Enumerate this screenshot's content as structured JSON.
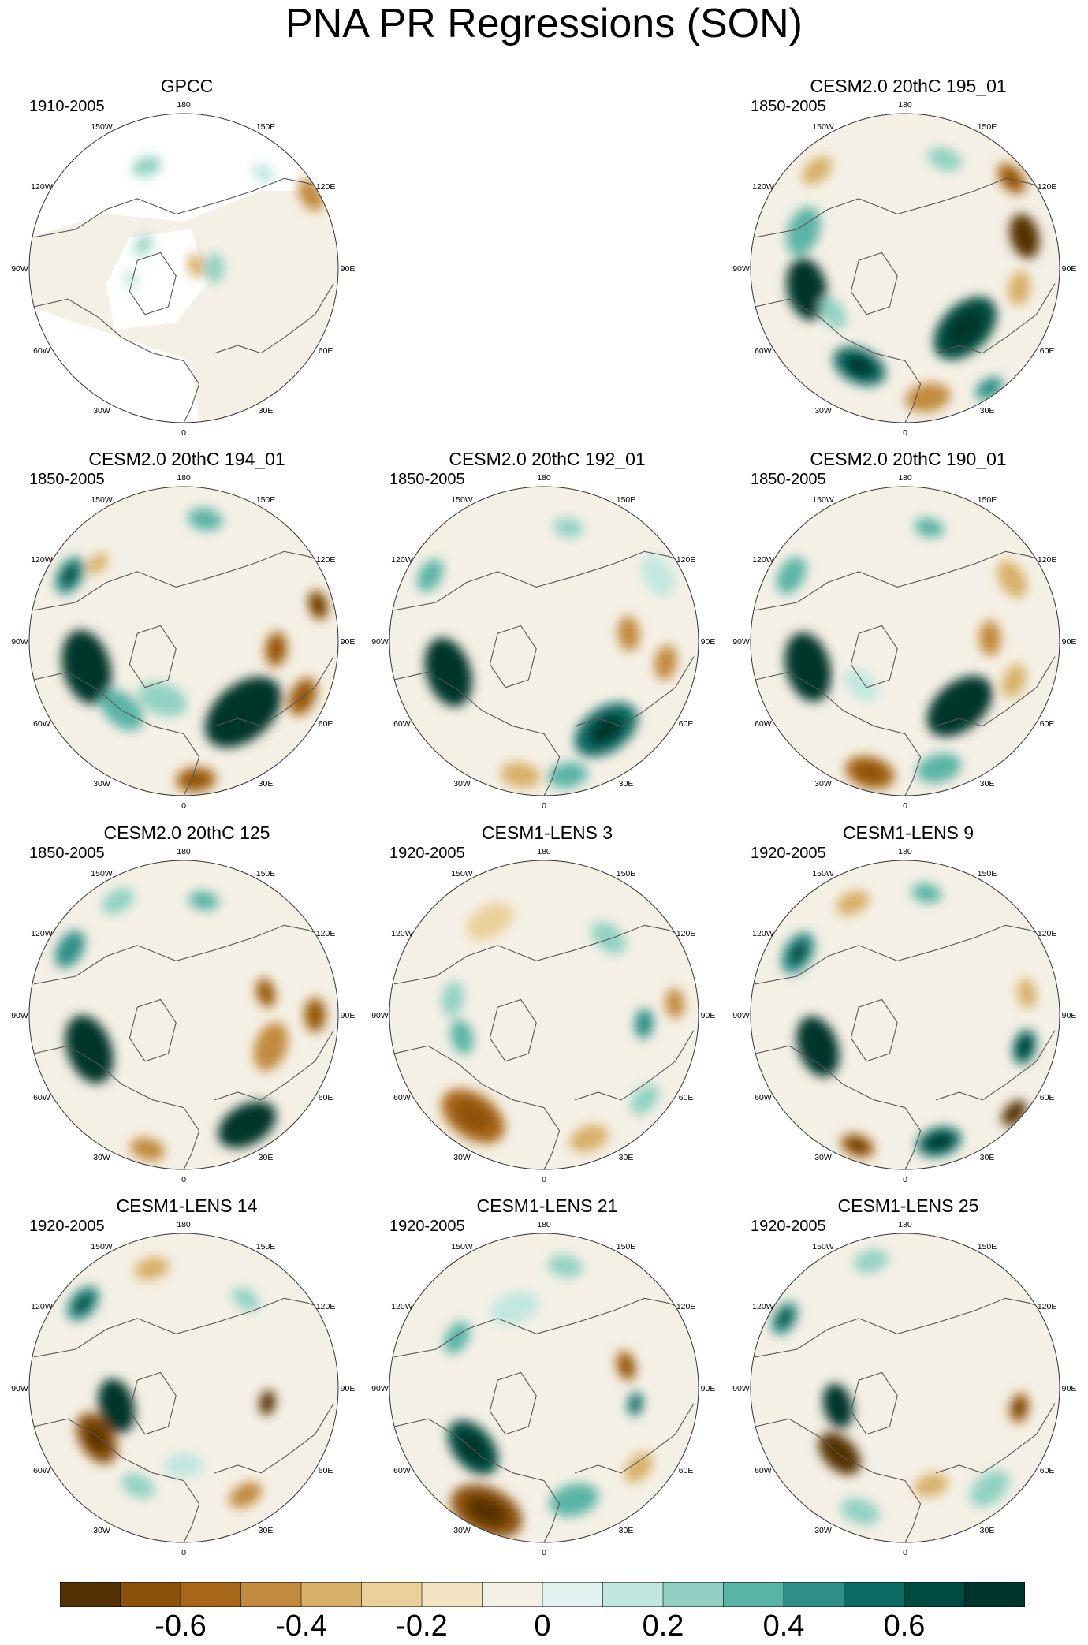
{
  "title": "PNA PR Regressions (SON)",
  "panels": [
    {
      "id": "gpcc",
      "title": "GPCC",
      "period": "1910-2005",
      "masked": true,
      "blobs": [
        [
          78,
          10,
          0.08,
          -0.3
        ],
        [
          90,
          12,
          0.2,
          0.3
        ],
        [
          258,
          8,
          0.35,
          0.2
        ],
        [
          300,
          9,
          0.3,
          0.25
        ],
        [
          60,
          14,
          0.95,
          -0.45
        ],
        [
          40,
          10,
          0.8,
          0.2
        ],
        [
          340,
          12,
          0.7,
          0.3
        ]
      ]
    },
    {
      "id": "c195",
      "title": "CESM2.0 20thC 195_01",
      "period": "1850-2005",
      "blobs": [
        [
          258,
          25,
          0.65,
          0.85
        ],
        [
          238,
          14,
          0.55,
          0.25
        ],
        [
          205,
          22,
          0.7,
          0.55
        ],
        [
          135,
          30,
          0.55,
          0.65
        ],
        [
          75,
          18,
          0.8,
          -0.8
        ],
        [
          50,
          14,
          0.9,
          -0.5
        ],
        [
          170,
          18,
          0.85,
          -0.4
        ],
        [
          290,
          20,
          0.7,
          0.35
        ],
        [
          318,
          14,
          0.85,
          -0.35
        ],
        [
          145,
          12,
          0.95,
          0.45
        ],
        [
          100,
          14,
          0.75,
          -0.3
        ],
        [
          20,
          14,
          0.75,
          0.25
        ]
      ]
    },
    {
      "id": "c194",
      "title": "CESM2.0 20thC 194_01",
      "period": "1850-2005",
      "blobs": [
        [
          255,
          30,
          0.65,
          1.0
        ],
        [
          222,
          20,
          0.6,
          0.4
        ],
        [
          175,
          16,
          0.9,
          -0.5
        ],
        [
          140,
          35,
          0.6,
          1.0
        ],
        [
          115,
          16,
          0.85,
          -0.5
        ],
        [
          95,
          14,
          0.6,
          -0.5
        ],
        [
          75,
          12,
          0.9,
          -0.6
        ],
        [
          300,
          16,
          0.85,
          0.5
        ],
        [
          312,
          10,
          0.75,
          -0.35
        ],
        [
          10,
          14,
          0.8,
          0.4
        ],
        [
          200,
          20,
          0.4,
          0.3
        ]
      ]
    },
    {
      "id": "c192",
      "title": "CESM2.0 20thC 192_01",
      "period": "1850-2005",
      "blobs": [
        [
          252,
          28,
          0.65,
          0.85
        ],
        [
          190,
          16,
          0.88,
          -0.35
        ],
        [
          170,
          16,
          0.88,
          0.4
        ],
        [
          145,
          28,
          0.7,
          0.55
        ],
        [
          100,
          14,
          0.8,
          -0.4
        ],
        [
          85,
          14,
          0.55,
          -0.45
        ],
        [
          300,
          14,
          0.85,
          0.4
        ],
        [
          12,
          12,
          0.75,
          0.3
        ],
        [
          60,
          18,
          0.85,
          0.2
        ]
      ]
    },
    {
      "id": "c190",
      "title": "CESM2.0 20thC 190_01",
      "period": "1850-2005",
      "blobs": [
        [
          255,
          28,
          0.65,
          0.95
        ],
        [
          195,
          20,
          0.88,
          -0.5
        ],
        [
          165,
          18,
          0.85,
          0.35
        ],
        [
          140,
          30,
          0.55,
          1.0
        ],
        [
          110,
          14,
          0.75,
          -0.3
        ],
        [
          88,
          14,
          0.55,
          -0.45
        ],
        [
          60,
          16,
          0.8,
          -0.3
        ],
        [
          300,
          16,
          0.85,
          0.4
        ],
        [
          12,
          12,
          0.75,
          0.35
        ],
        [
          225,
          16,
          0.4,
          0.2
        ]
      ]
    },
    {
      "id": "c125",
      "title": "CESM2.0 20thC 125",
      "period": "1850-2005",
      "blobs": [
        [
          250,
          28,
          0.65,
          1.0
        ],
        [
          195,
          14,
          0.9,
          -0.45
        ],
        [
          150,
          25,
          0.82,
          0.85
        ],
        [
          110,
          20,
          0.6,
          -0.4
        ],
        [
          90,
          14,
          0.85,
          -0.5
        ],
        [
          75,
          12,
          0.55,
          -0.5
        ],
        [
          300,
          16,
          0.85,
          0.45
        ],
        [
          10,
          12,
          0.75,
          0.35
        ],
        [
          330,
          14,
          0.85,
          0.3
        ]
      ]
    },
    {
      "id": "l3",
      "title": "CESM1-LENS 3",
      "period": "1920-2005",
      "blobs": [
        [
          215,
          28,
          0.8,
          -0.5
        ],
        [
          160,
          16,
          0.85,
          -0.35
        ],
        [
          95,
          12,
          0.65,
          0.45
        ],
        [
          85,
          12,
          0.85,
          -0.4
        ],
        [
          255,
          14,
          0.55,
          0.35
        ],
        [
          280,
          14,
          0.6,
          0.3
        ],
        [
          40,
          16,
          0.65,
          0.25
        ],
        [
          130,
          14,
          0.85,
          0.25
        ],
        [
          330,
          20,
          0.7,
          -0.2
        ]
      ]
    },
    {
      "id": "l9",
      "title": "CESM1-LENS 9",
      "period": "1920-2005",
      "blobs": [
        [
          250,
          25,
          0.6,
          0.85
        ],
        [
          200,
          14,
          0.9,
          -0.55
        ],
        [
          165,
          18,
          0.85,
          0.6
        ],
        [
          132,
          12,
          0.95,
          -0.8
        ],
        [
          105,
          14,
          0.8,
          0.55
        ],
        [
          80,
          12,
          0.8,
          -0.3
        ],
        [
          300,
          18,
          0.8,
          0.5
        ],
        [
          10,
          12,
          0.8,
          0.35
        ],
        [
          335,
          14,
          0.8,
          -0.3
        ]
      ]
    },
    {
      "id": "l14",
      "title": "CESM1-LENS 14",
      "period": "1920-2005",
      "blobs": [
        [
          240,
          22,
          0.65,
          -0.65
        ],
        [
          255,
          22,
          0.45,
          0.95
        ],
        [
          150,
          14,
          0.8,
          -0.45
        ],
        [
          100,
          10,
          0.55,
          -0.7
        ],
        [
          35,
          12,
          0.7,
          0.3
        ],
        [
          310,
          16,
          0.85,
          0.5
        ],
        [
          345,
          14,
          0.8,
          -0.3
        ],
        [
          180,
          16,
          0.5,
          0.2
        ],
        [
          205,
          14,
          0.7,
          0.3
        ]
      ]
    },
    {
      "id": "l21",
      "title": "CESM1-LENS 21",
      "period": "1920-2005",
      "blobs": [
        [
          205,
          30,
          0.88,
          -0.6
        ],
        [
          230,
          25,
          0.6,
          0.7
        ],
        [
          165,
          20,
          0.75,
          0.35
        ],
        [
          100,
          10,
          0.6,
          0.5
        ],
        [
          75,
          12,
          0.55,
          -0.5
        ],
        [
          300,
          14,
          0.65,
          0.35
        ],
        [
          10,
          14,
          0.8,
          0.3
        ],
        [
          130,
          14,
          0.8,
          -0.3
        ],
        [
          340,
          20,
          0.55,
          0.2
        ]
      ]
    },
    {
      "id": "l25",
      "title": "CESM1-LENS 25",
      "period": "1920-2005",
      "blobs": [
        [
          225,
          20,
          0.6,
          -0.85
        ],
        [
          255,
          18,
          0.45,
          0.85
        ],
        [
          165,
          14,
          0.65,
          -0.35
        ],
        [
          140,
          18,
          0.85,
          0.3
        ],
        [
          100,
          12,
          0.75,
          -0.55
        ],
        [
          300,
          14,
          0.9,
          0.5
        ],
        [
          345,
          14,
          0.85,
          0.25
        ],
        [
          200,
          16,
          0.85,
          0.3
        ]
      ]
    }
  ],
  "lat_labels": [
    "180",
    "150E",
    "120E",
    "90E",
    "60E",
    "30E",
    "0",
    "30W",
    "60W",
    "90W",
    "120W",
    "150W"
  ],
  "colorbar": {
    "colors": [
      "#543005",
      "#8c510a",
      "#a86619",
      "#c28a3c",
      "#d8b069",
      "#ebd09a",
      "#f4e3c2",
      "#f5f0e6",
      "#e3f1ef",
      "#c1e7df",
      "#91d1c3",
      "#5ab4a6",
      "#2f9088",
      "#0c6b63",
      "#004b41",
      "#00352b"
    ],
    "tick_labels": [
      "-0.6",
      "-0.4",
      "-0.2",
      "0",
      "0.2",
      "0.4",
      "0.6"
    ]
  }
}
